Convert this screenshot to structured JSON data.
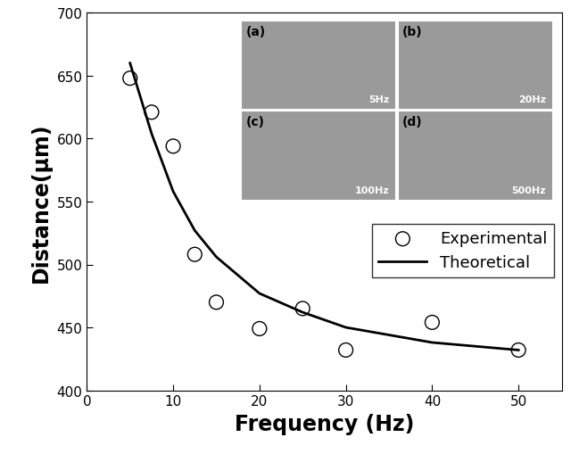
{
  "chart_data": {
    "type": "scatter",
    "x_label": "Frequency (Hz)",
    "y_label": "Distance(μm)",
    "xlim": [
      0,
      55
    ],
    "xticks": [
      0,
      10,
      20,
      30,
      40,
      50
    ],
    "ylim": [
      400,
      700
    ],
    "yticks": [
      400,
      450,
      500,
      550,
      600,
      650,
      700
    ],
    "legend": "center right",
    "series": [
      {
        "name": "Experimental",
        "type": "scatter",
        "color": "#000000",
        "marker": "o",
        "x": [
          5,
          7.5,
          10,
          12.5,
          15,
          20,
          25,
          30,
          40,
          50
        ],
        "values": [
          648,
          621,
          594,
          508,
          470,
          449,
          465,
          432,
          454,
          432
        ]
      },
      {
        "name": "Theoretical",
        "type": "line",
        "color": "#000000",
        "line_style": "solid",
        "x": [
          5,
          7.5,
          10,
          12.5,
          15,
          20,
          25,
          30,
          40,
          50
        ],
        "values": [
          660,
          604,
          558,
          527,
          506,
          477,
          462,
          450,
          438,
          432
        ]
      }
    ],
    "insets": [
      {
        "panel": "(a)",
        "label": "5Hz"
      },
      {
        "panel": "(b)",
        "label": "20Hz"
      },
      {
        "panel": "(c)",
        "label": "100Hz"
      },
      {
        "panel": "(d)",
        "label": "500Hz"
      }
    ]
  }
}
